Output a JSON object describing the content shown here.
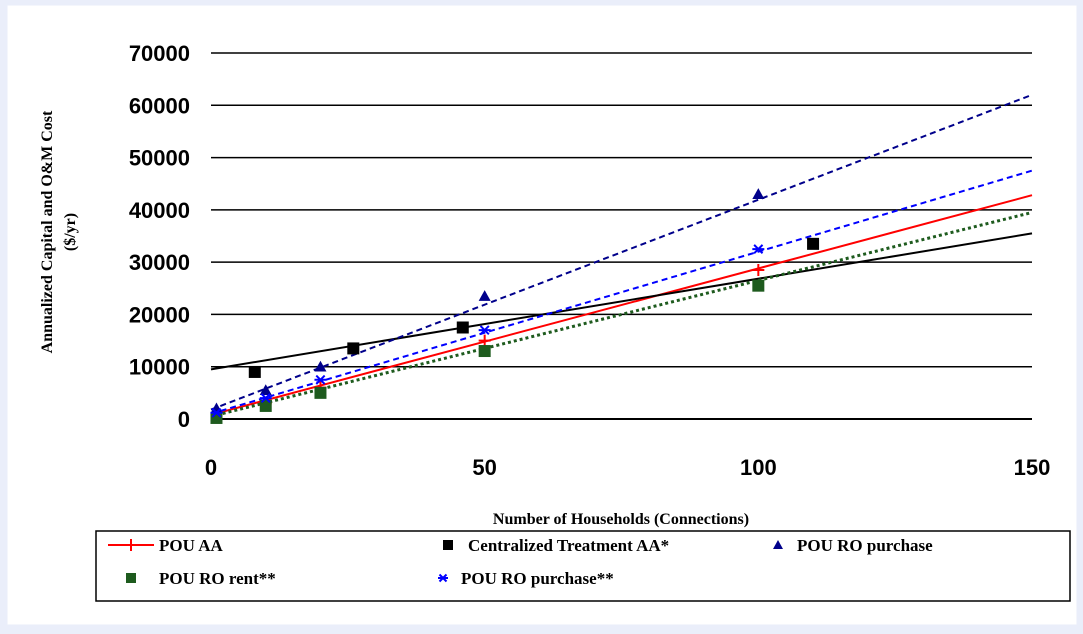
{
  "chart_data": {
    "type": "scatter",
    "xlabel": "Number of Households (Connections)",
    "ylabel_line1": "Annualized Capital and O&M Cost",
    "ylabel_line2": "($/yr)",
    "xlim": [
      0,
      150
    ],
    "ylim": [
      0,
      70000
    ],
    "x_ticks": [
      0,
      50,
      100,
      150
    ],
    "y_ticks": [
      0,
      10000,
      20000,
      30000,
      40000,
      50000,
      60000,
      70000
    ],
    "y_tick_labels": [
      "0",
      "10000",
      "20000",
      "30000",
      "40000",
      "50000",
      "60000",
      "70000"
    ],
    "x_tick_labels": [
      "0",
      "50",
      "100",
      "150"
    ],
    "grid": "horizontal",
    "legend_position": "bottom",
    "series": [
      {
        "name": "POU AA",
        "color": "#ff0000",
        "marker": "plus",
        "line_style": "solid",
        "points": [
          [
            1,
            1000
          ],
          [
            10,
            3000
          ],
          [
            20,
            6000
          ],
          [
            50,
            15000
          ],
          [
            100,
            28500
          ]
        ],
        "trend": [
          [
            0,
            800
          ],
          [
            150,
            42800
          ]
        ]
      },
      {
        "name": "Centralized Treatment AA*",
        "color": "#000000",
        "marker": "square",
        "line_style": "solid",
        "points": [
          [
            8,
            9000
          ],
          [
            26,
            13500
          ],
          [
            46,
            17500
          ],
          [
            110,
            33500
          ]
        ],
        "trend": [
          [
            0,
            9500
          ],
          [
            150,
            35500
          ]
        ]
      },
      {
        "name": "POU RO purchase",
        "color": "#00008b",
        "marker": "triangle",
        "line_style": "dashed",
        "points": [
          [
            1,
            2000
          ],
          [
            10,
            5500
          ],
          [
            20,
            10000
          ],
          [
            50,
            23500
          ],
          [
            100,
            43000
          ]
        ],
        "trend": [
          [
            0,
            1800
          ],
          [
            150,
            62000
          ]
        ]
      },
      {
        "name": "POU RO rent**",
        "color": "#1e5b1e",
        "marker": "square",
        "line_style": "dotted",
        "points": [
          [
            1,
            200
          ],
          [
            10,
            2500
          ],
          [
            20,
            5000
          ],
          [
            50,
            13000
          ],
          [
            100,
            25500
          ]
        ],
        "trend": [
          [
            0,
            500
          ],
          [
            150,
            39500
          ]
        ]
      },
      {
        "name": "POU RO purchase**",
        "color": "#0000ff",
        "marker": "star",
        "line_style": "dashed",
        "points": [
          [
            1,
            1200
          ],
          [
            10,
            4000
          ],
          [
            20,
            7500
          ],
          [
            50,
            17000
          ],
          [
            100,
            32500
          ]
        ],
        "trend": [
          [
            0,
            1000
          ],
          [
            150,
            47500
          ]
        ]
      }
    ]
  }
}
